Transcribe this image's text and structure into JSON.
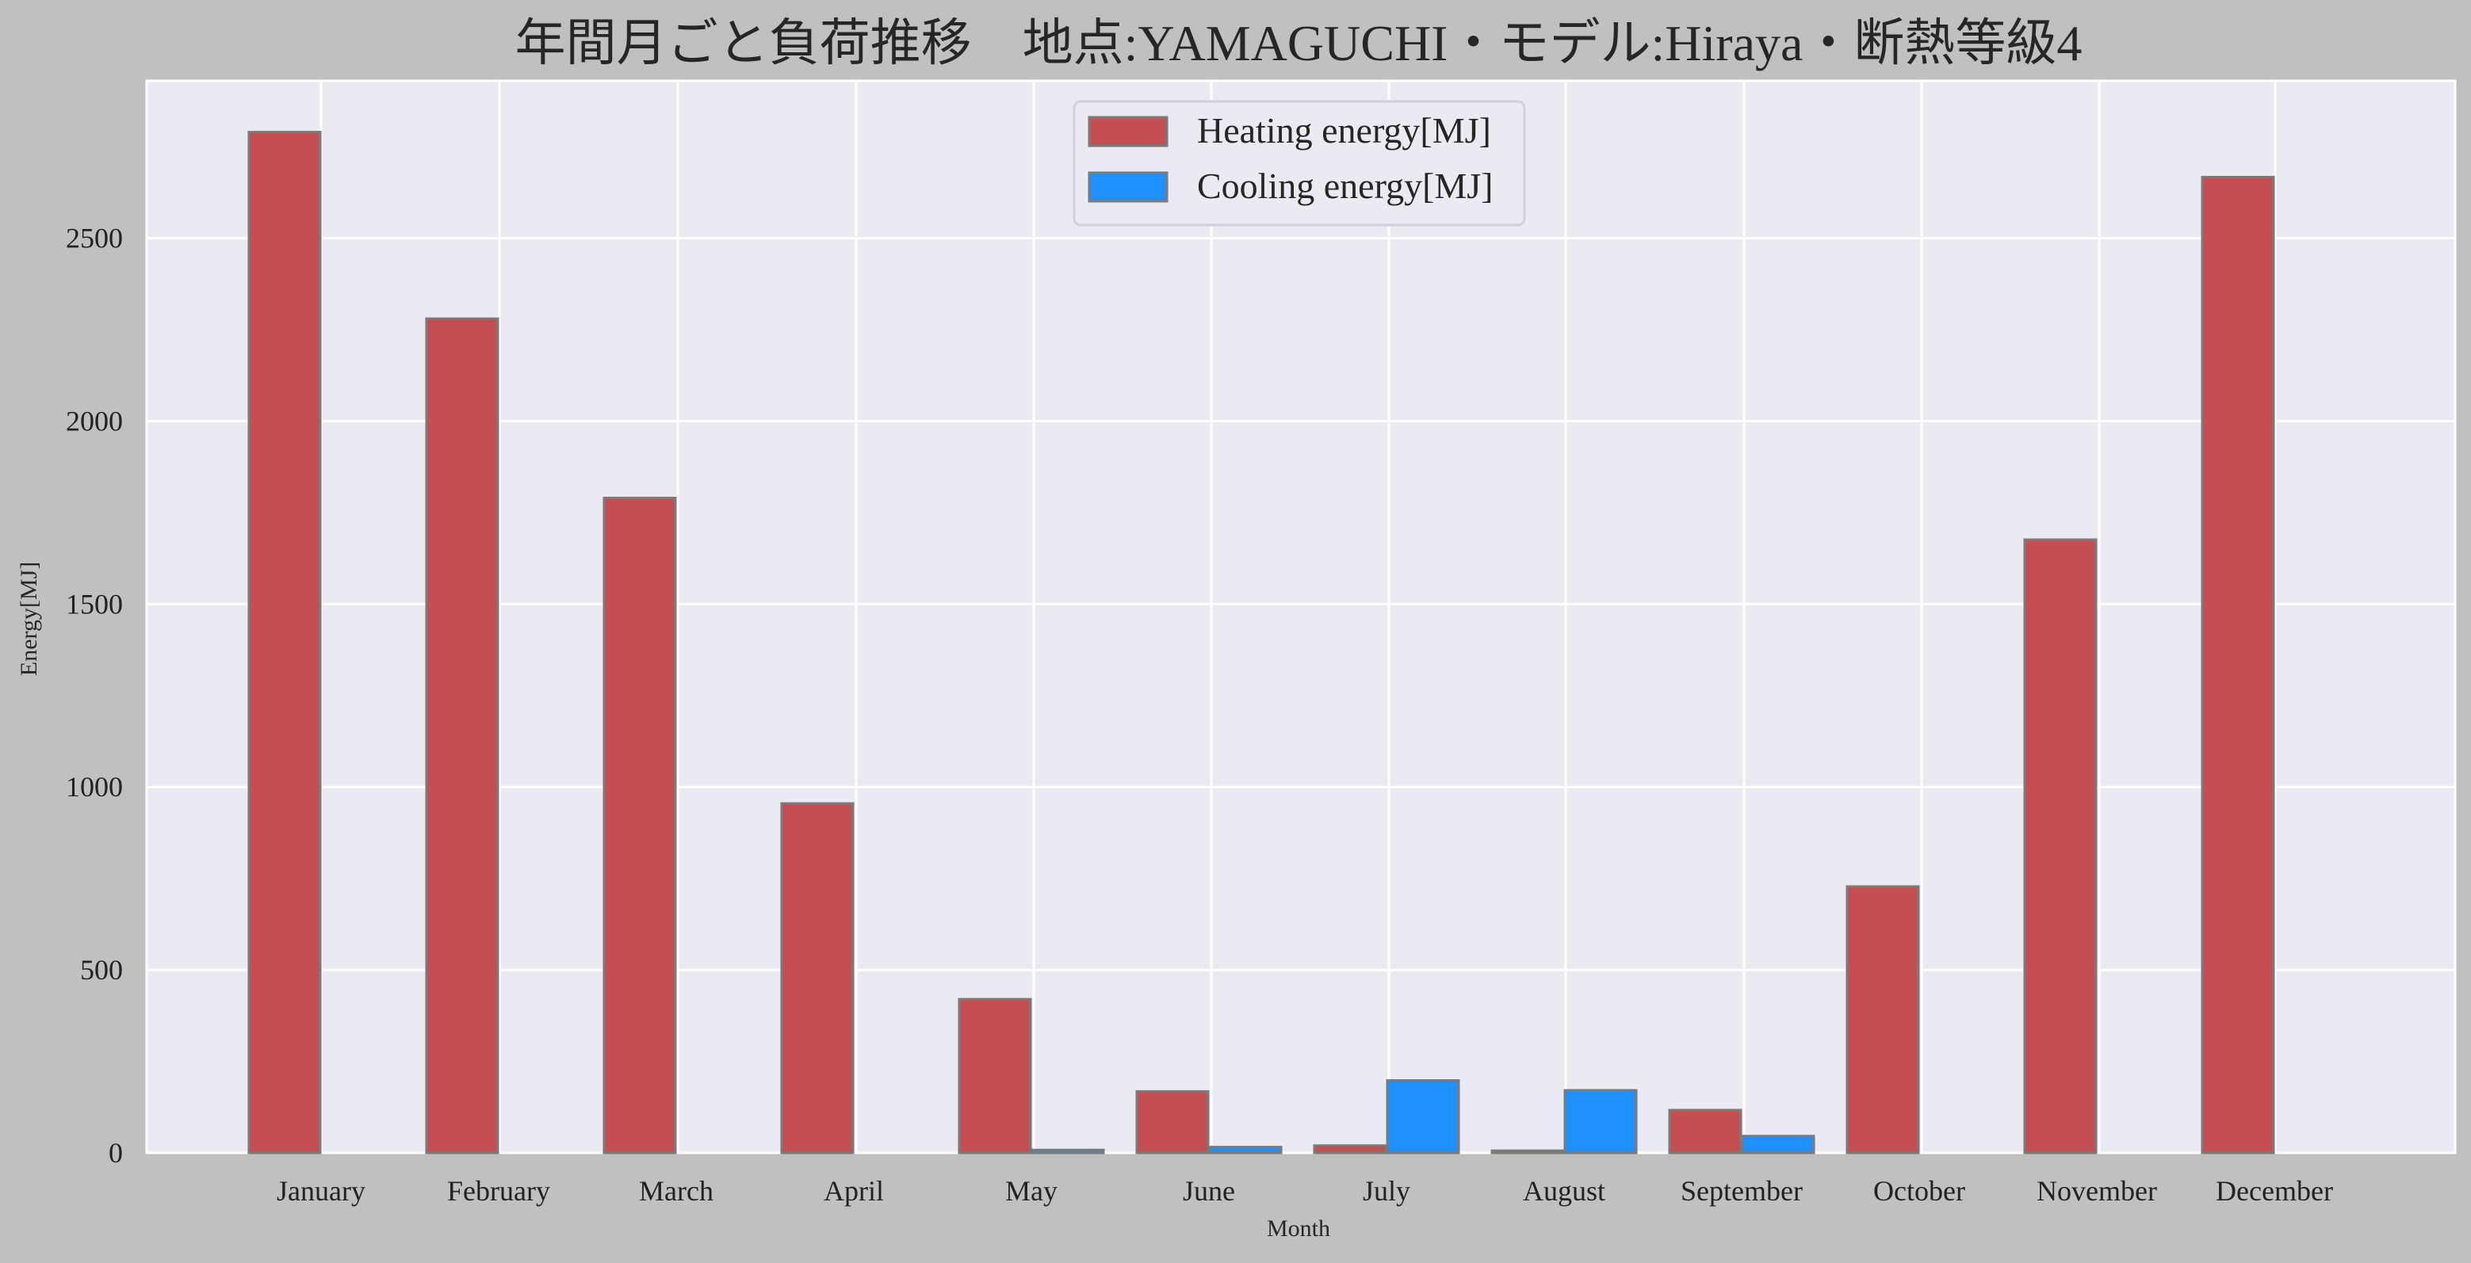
{
  "chart_data": {
    "type": "bar",
    "title": "年間月ごと負荷推移　地点:YAMAGUCHI・モデル:Hiraya・断熱等級4",
    "xlabel": "Month",
    "ylabel": "Energy[MJ]",
    "categories": [
      "January",
      "February",
      "March",
      "April",
      "May",
      "June",
      "July",
      "August",
      "September",
      "October",
      "November",
      "December"
    ],
    "series": [
      {
        "name": "Heating energy[MJ]",
        "color": "#c44e52",
        "values": [
          2790,
          2280,
          1790,
          955,
          420,
          168,
          20,
          6,
          117,
          728,
          1676,
          2667
        ]
      },
      {
        "name": "Cooling energy[MJ]",
        "color": "#1e90ff",
        "values": [
          0,
          0,
          0,
          0,
          8,
          16,
          198,
          171,
          46,
          0,
          0,
          0
        ]
      }
    ],
    "ylim": [
      0,
      2930
    ],
    "yticks": [
      0,
      500,
      1000,
      1500,
      2000,
      2500
    ],
    "grid": true,
    "legend_position": "top-center",
    "colors": {
      "figure_background": "#c0c0c0",
      "plot_background": "#eaeaf2",
      "grid": "#ffffff",
      "bar_edge": "#7a7a7a"
    }
  }
}
